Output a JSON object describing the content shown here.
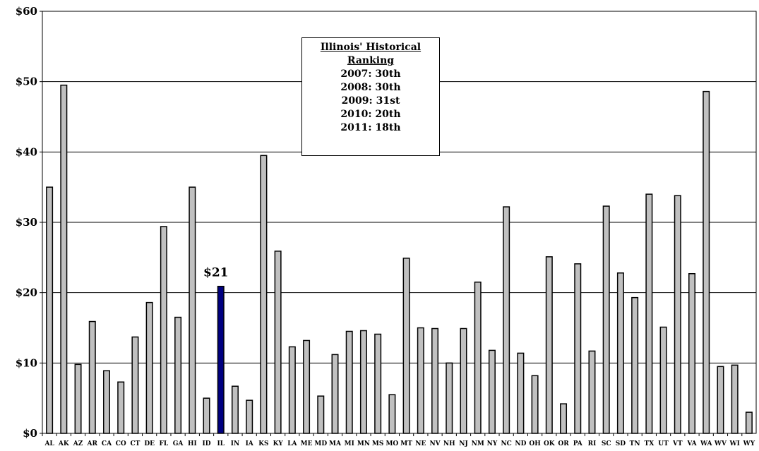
{
  "chart_data": {
    "type": "bar",
    "categories": [
      "AL",
      "AK",
      "AZ",
      "AR",
      "CA",
      "CO",
      "CT",
      "DE",
      "FL",
      "GA",
      "HI",
      "ID",
      "IL",
      "IN",
      "IA",
      "KS",
      "KY",
      "LA",
      "ME",
      "MD",
      "MA",
      "MI",
      "MN",
      "MS",
      "MO",
      "MT",
      "NE",
      "NV",
      "NH",
      "NJ",
      "NM",
      "NY",
      "NC",
      "ND",
      "OH",
      "OK",
      "OR",
      "PA",
      "RI",
      "SC",
      "SD",
      "TN",
      "TX",
      "UT",
      "VT",
      "VA",
      "WA",
      "WV",
      "WI",
      "WY"
    ],
    "values": [
      35.0,
      49.5,
      9.8,
      15.9,
      8.9,
      7.3,
      13.7,
      18.6,
      29.4,
      16.5,
      35.0,
      5.0,
      20.9,
      6.7,
      4.7,
      39.5,
      25.9,
      12.3,
      13.2,
      5.3,
      11.2,
      14.5,
      14.6,
      14.1,
      5.5,
      24.9,
      15.0,
      14.9,
      10.0,
      14.9,
      21.5,
      11.8,
      32.2,
      11.4,
      8.2,
      25.1,
      4.2,
      24.1,
      11.7,
      32.3,
      22.8,
      19.3,
      34.0,
      15.1,
      33.8,
      22.7,
      48.6,
      9.5,
      9.7,
      3.0
    ],
    "highlight_category": "IL",
    "highlight_label": "$21",
    "title": "",
    "xlabel": "",
    "ylabel": "",
    "ylim": [
      0,
      60
    ],
    "yticks": [
      0,
      10,
      20,
      30,
      40,
      50,
      60
    ],
    "ytick_labels": [
      "$0",
      "$10",
      "$20",
      "$30",
      "$40",
      "$50",
      "$60"
    ],
    "grid": true,
    "legend": "none",
    "colors": {
      "bar": "#c0c0c0",
      "highlight": "#000080",
      "grid": "#000000"
    }
  },
  "annotation": {
    "title_lines": [
      "Illinois' Historical",
      "Ranking"
    ],
    "rows": [
      "2007:  30th",
      "2008:  30th",
      "2009:  31st",
      "2010:  20th",
      "2011:  18th"
    ]
  }
}
